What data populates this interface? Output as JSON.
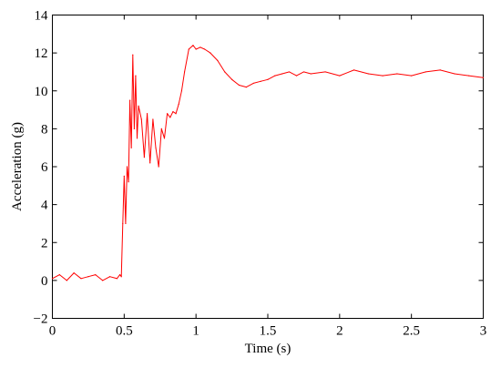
{
  "chart_data": {
    "type": "line",
    "xlabel": "Time (s)",
    "ylabel": "Acceleration (g)",
    "xlim": [
      0,
      3
    ],
    "ylim": [
      -2,
      14
    ],
    "xticks": [
      0,
      0.5,
      1,
      1.5,
      2,
      2.5,
      3
    ],
    "xtick_labels": [
      "0",
      "0.5",
      "1",
      "1.5",
      "2",
      "2.5",
      "3"
    ],
    "yticks": [
      -2,
      0,
      2,
      4,
      6,
      8,
      10,
      12,
      14
    ],
    "ytick_labels": [
      "−2",
      "0",
      "2",
      "4",
      "6",
      "8",
      "10",
      "12",
      "14"
    ],
    "grid": false,
    "legend": "none",
    "series": [
      {
        "color": "#ff0000",
        "x": [
          0,
          0.05,
          0.1,
          0.15,
          0.2,
          0.25,
          0.3,
          0.35,
          0.4,
          0.45,
          0.47,
          0.48,
          0.49,
          0.5,
          0.51,
          0.52,
          0.53,
          0.54,
          0.55,
          0.56,
          0.57,
          0.58,
          0.59,
          0.6,
          0.62,
          0.64,
          0.66,
          0.68,
          0.7,
          0.72,
          0.74,
          0.76,
          0.78,
          0.8,
          0.82,
          0.84,
          0.86,
          0.88,
          0.9,
          0.92,
          0.95,
          0.98,
          1.0,
          1.03,
          1.06,
          1.1,
          1.15,
          1.2,
          1.25,
          1.3,
          1.35,
          1.4,
          1.45,
          1.5,
          1.55,
          1.6,
          1.65,
          1.7,
          1.75,
          1.8,
          1.9,
          2.0,
          2.1,
          2.2,
          2.3,
          2.4,
          2.5,
          2.6,
          2.7,
          2.8,
          2.9,
          3.0
        ],
        "y": [
          0.1,
          0.3,
          0.0,
          0.4,
          0.1,
          0.2,
          0.3,
          0.0,
          0.2,
          0.1,
          0.3,
          0.2,
          3.0,
          5.5,
          3.0,
          6.0,
          5.2,
          9.5,
          7.0,
          11.9,
          8.0,
          10.8,
          7.5,
          9.2,
          8.5,
          6.5,
          8.8,
          6.2,
          8.5,
          7.0,
          6.0,
          8.0,
          7.5,
          8.8,
          8.6,
          8.9,
          8.8,
          9.3,
          10.0,
          11.0,
          12.2,
          12.4,
          12.2,
          12.3,
          12.2,
          12.0,
          11.6,
          11.0,
          10.6,
          10.3,
          10.2,
          10.4,
          10.5,
          10.6,
          10.8,
          10.9,
          11.0,
          10.8,
          11.0,
          10.9,
          11.0,
          10.8,
          11.1,
          10.9,
          10.8,
          10.9,
          10.8,
          11.0,
          11.1,
          10.9,
          10.8,
          10.7
        ]
      }
    ]
  }
}
